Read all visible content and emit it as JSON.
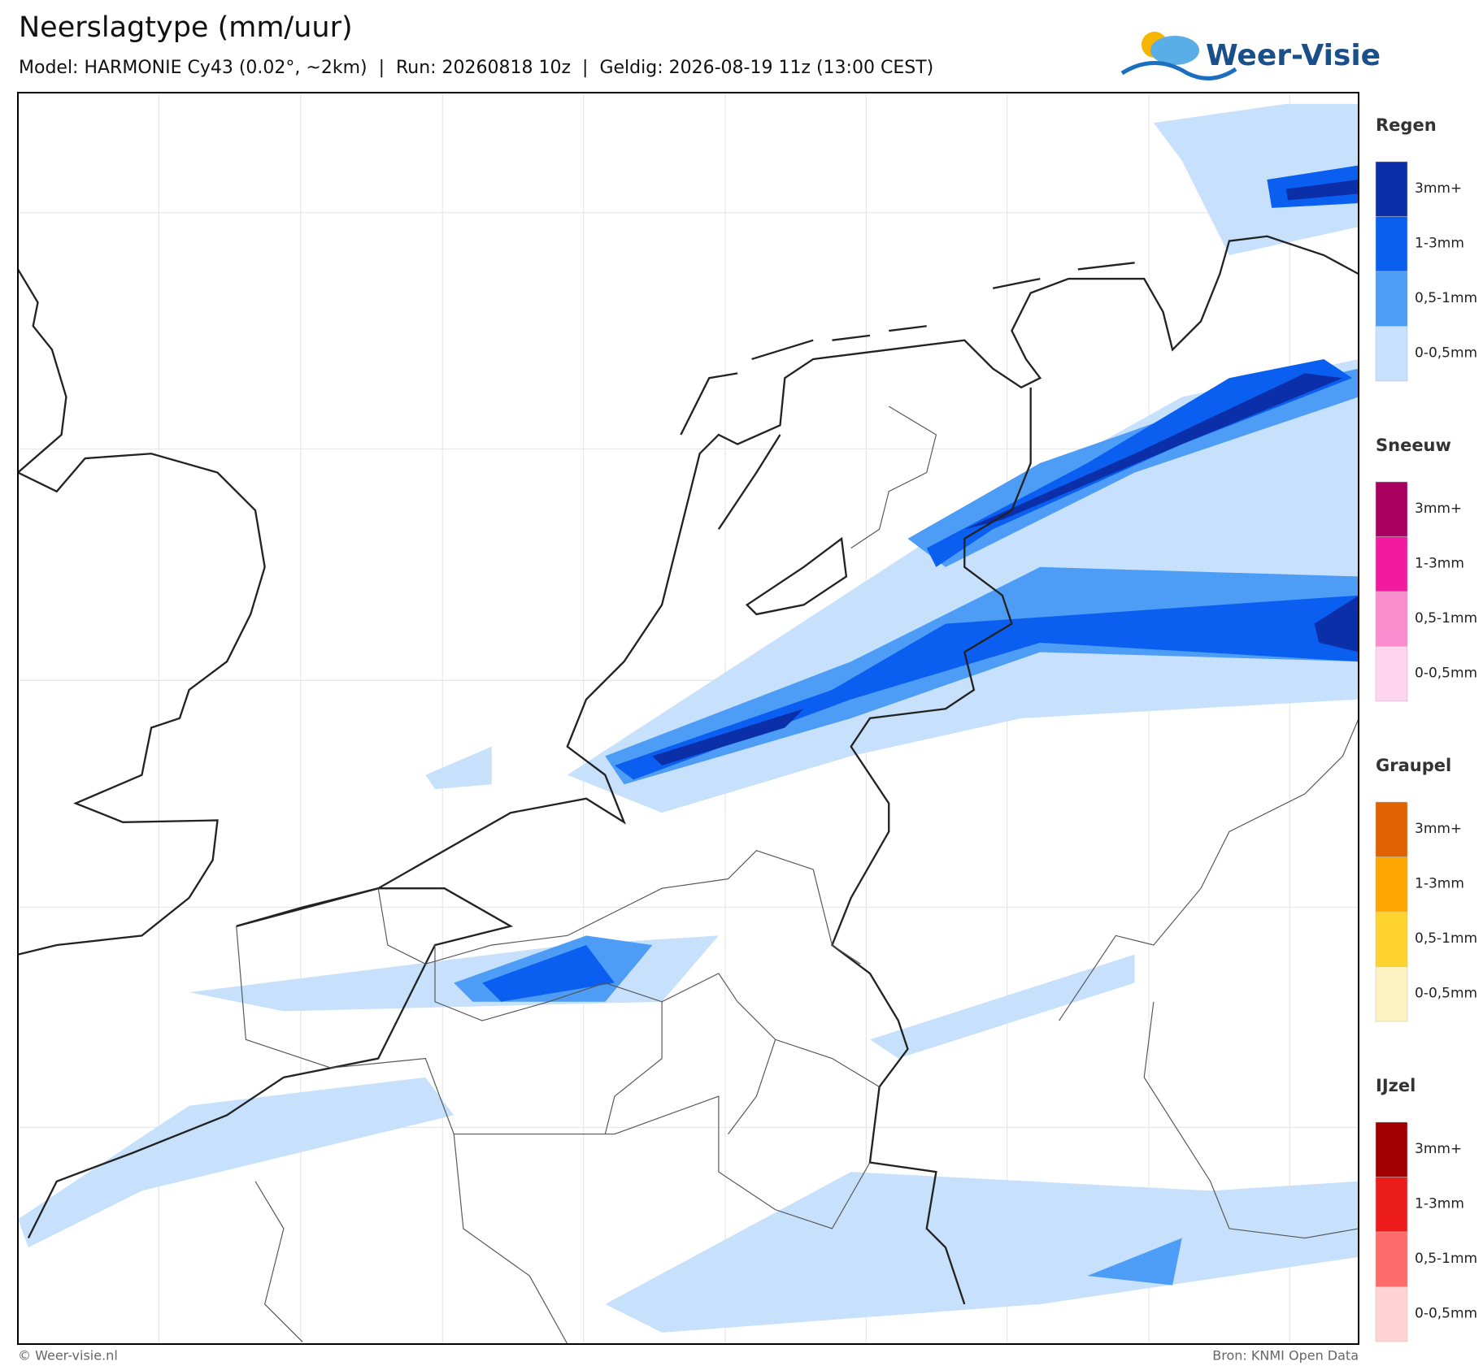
{
  "header": {
    "title": "Neerslagtype (mm/uur)",
    "subtitle": "Model: HARMONIE Cy43 (0.02°, ~2km)  |  Run: 20260818 10z  |  Geldig: 2026-08-19 11z (13:00 CEST)",
    "logo": "Weer-Visie"
  },
  "legend": [
    {
      "title": "Regen",
      "items": [
        {
          "label": "3mm+",
          "color": "#0a2fa8"
        },
        {
          "label": "1-3mm",
          "color": "#0a5ef0"
        },
        {
          "label": "0,5-1mm",
          "color": "#4d9cf5"
        },
        {
          "label": "0-0,5mm",
          "color": "#c7e0fb"
        }
      ]
    },
    {
      "title": "Sneeuw",
      "items": [
        {
          "label": "3mm+",
          "color": "#a8005f"
        },
        {
          "label": "1-3mm",
          "color": "#f21ba0"
        },
        {
          "label": "0,5-1mm",
          "color": "#f98ccc"
        },
        {
          "label": "0-0,5mm",
          "color": "#fdd5ec"
        }
      ]
    },
    {
      "title": "Graupel",
      "items": [
        {
          "label": "3mm+",
          "color": "#e06200"
        },
        {
          "label": "1-3mm",
          "color": "#ffa500"
        },
        {
          "label": "0,5-1mm",
          "color": "#ffd32e"
        },
        {
          "label": "0-0,5mm",
          "color": "#fff2c2"
        }
      ]
    },
    {
      "title": "IJzel",
      "items": [
        {
          "label": "3mm+",
          "color": "#a10000"
        },
        {
          "label": "1-3mm",
          "color": "#ec1c1c"
        },
        {
          "label": "0,5-1mm",
          "color": "#ff6b6b"
        },
        {
          "label": "0-0,5mm",
          "color": "#ffd3d3"
        }
      ]
    }
  ],
  "footer": {
    "left": "© Weer-visie.nl",
    "right": "Bron: KNMI Open Data"
  }
}
